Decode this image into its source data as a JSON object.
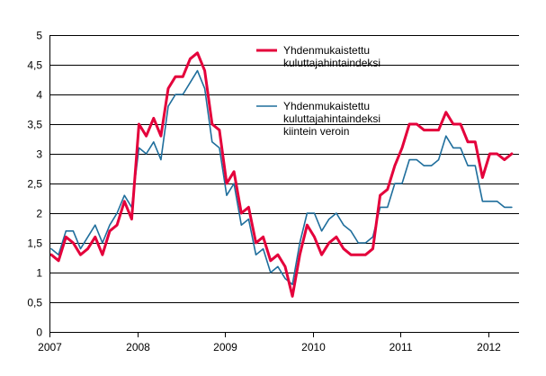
{
  "chart_data": {
    "type": "line",
    "title": "",
    "xlabel": "",
    "ylabel": "",
    "ylim": [
      0,
      5
    ],
    "grid": "horizontal",
    "legend_position": "top-right",
    "y_ticks": [
      "0",
      "0,5",
      "1",
      "1,5",
      "2",
      "2,5",
      "3",
      "3,5",
      "4",
      "4,5",
      "5"
    ],
    "x_ticks": [
      "2007",
      "2008",
      "2009",
      "2010",
      "2011",
      "2012"
    ],
    "x_start": "2007-01",
    "x_end": "2012-04",
    "series": [
      {
        "name": "Yhdenmukaistettu kuluttajahintaindeksi",
        "legend_lines": [
          "Yhdenmukaistettu",
          "kuluttajahintaindeksi"
        ],
        "color": "#e4003b",
        "values": [
          1.3,
          1.2,
          1.6,
          1.5,
          1.3,
          1.4,
          1.6,
          1.3,
          1.7,
          1.8,
          2.2,
          1.9,
          3.5,
          3.3,
          3.6,
          3.3,
          4.1,
          4.3,
          4.3,
          4.6,
          4.7,
          4.4,
          3.5,
          3.4,
          2.5,
          2.7,
          2.0,
          2.1,
          1.5,
          1.6,
          1.2,
          1.3,
          1.1,
          0.6,
          1.3,
          1.8,
          1.6,
          1.3,
          1.5,
          1.6,
          1.4,
          1.3,
          1.3,
          1.3,
          1.4,
          2.3,
          2.4,
          2.8,
          3.1,
          3.5,
          3.5,
          3.4,
          3.4,
          3.4,
          3.7,
          3.5,
          3.5,
          3.2,
          3.2,
          2.6,
          3.0,
          3.0,
          2.9,
          3.0
        ]
      },
      {
        "name": "Yhdenmukaistettu kuluttajahintaindeksi kiintein veroin",
        "legend_lines": [
          "Yhdenmukaistettu",
          "kuluttajahintaindeksi",
          "kiintein veroin"
        ],
        "color": "#1f6e9c",
        "values": [
          1.4,
          1.3,
          1.7,
          1.7,
          1.4,
          1.6,
          1.8,
          1.5,
          1.8,
          2.0,
          2.3,
          2.1,
          3.1,
          3.0,
          3.2,
          2.9,
          3.8,
          4.0,
          4.0,
          4.2,
          4.4,
          4.1,
          3.2,
          3.1,
          2.3,
          2.5,
          1.8,
          1.9,
          1.3,
          1.4,
          1.0,
          1.1,
          0.9,
          0.8,
          1.5,
          2.0,
          2.0,
          1.7,
          1.9,
          2.0,
          1.8,
          1.7,
          1.5,
          1.5,
          1.6,
          2.1,
          2.1,
          2.5,
          2.5,
          2.9,
          2.9,
          2.8,
          2.8,
          2.9,
          3.3,
          3.1,
          3.1,
          2.8,
          2.8,
          2.2,
          2.2,
          2.2,
          2.1,
          2.1
        ]
      }
    ]
  }
}
